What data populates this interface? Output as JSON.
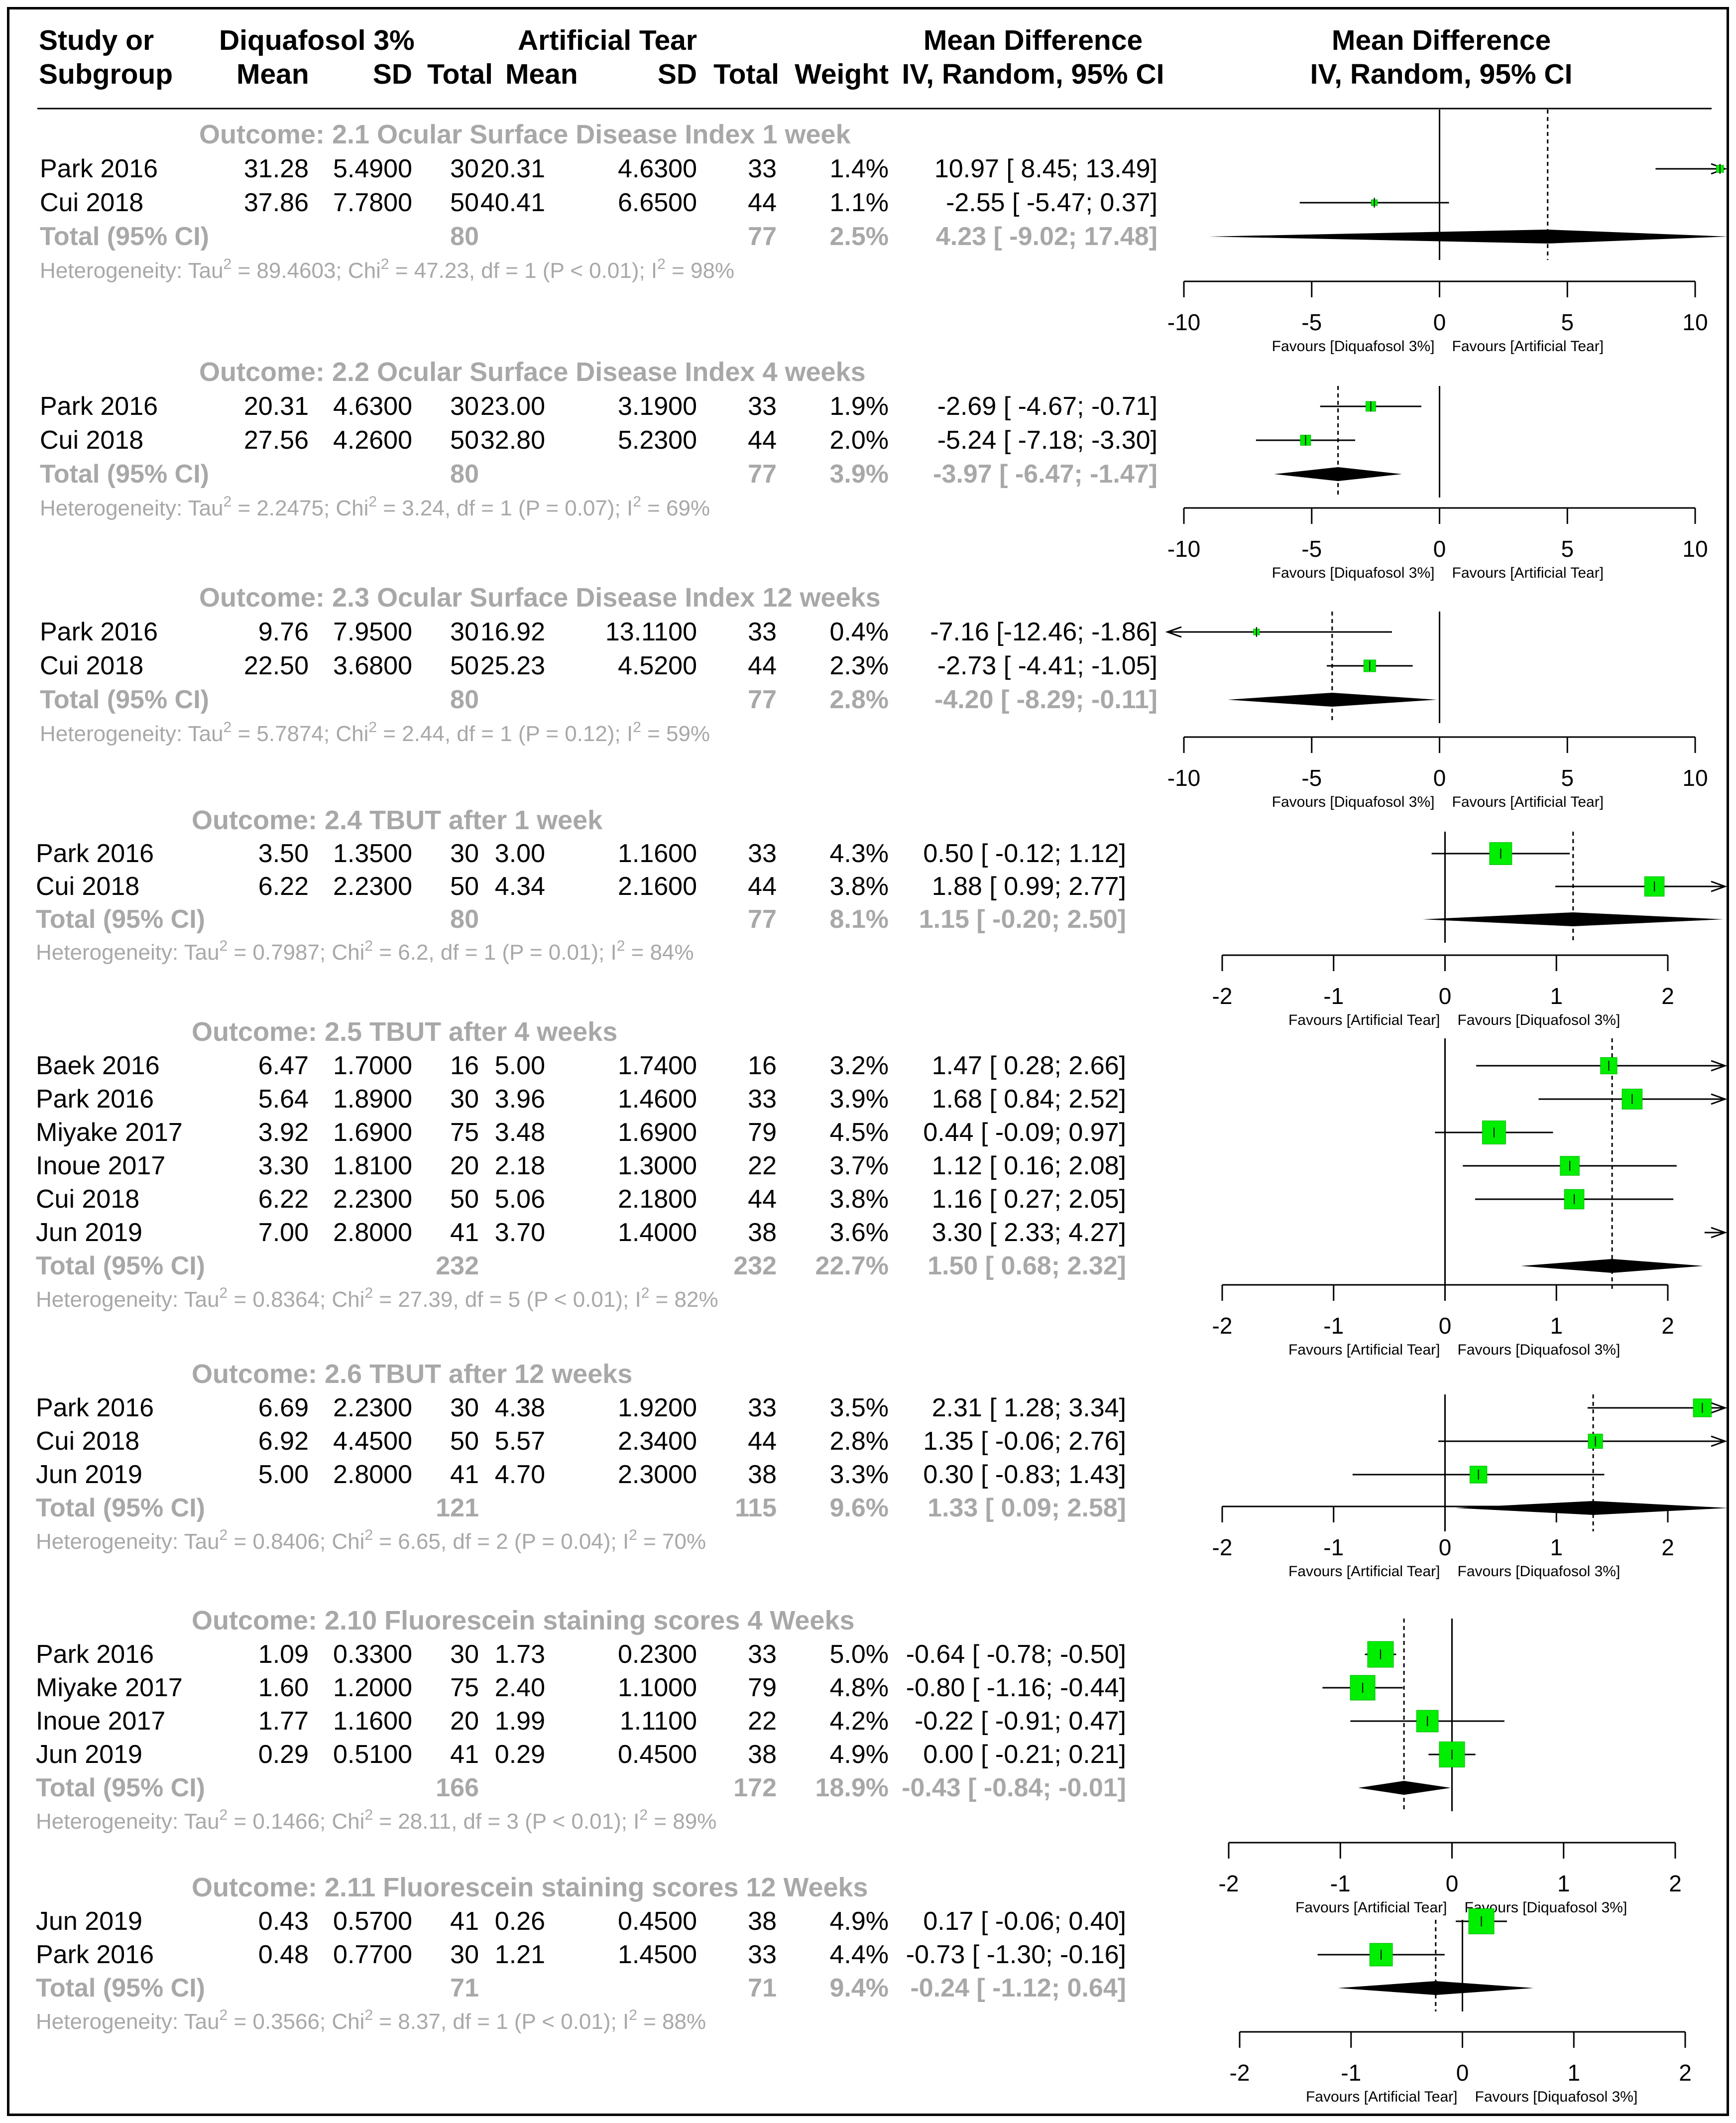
{
  "header": {
    "study_or": "Study or",
    "subgroup": "Subgroup",
    "group1": "Diquafosol 3%",
    "group2": "Artificial Tear",
    "mean": "Mean",
    "sd": "SD",
    "total": "Total",
    "weight": "Weight",
    "md_title": "Mean Difference",
    "md_sub": "IV, Random, 95% CI"
  },
  "chart_data": {
    "type": "forest",
    "outcomes": [
      {
        "title": "Outcome: 2.1 Ocular Surface Disease Index 1 week",
        "studies": [
          {
            "name": "Park 2016",
            "mean1": "31.28",
            "sd1": "5.4900",
            "n1": "30",
            "mean2": "20.31",
            "sd2": "4.6300",
            "n2": "33",
            "weight": "1.4%",
            "ci_text": "10.97 [ 8.45; 13.49]",
            "md": 10.97,
            "lo": 8.45,
            "hi": 13.49
          },
          {
            "name": "Cui 2018",
            "mean1": "37.86",
            "sd1": "7.7800",
            "n1": "50",
            "mean2": "40.41",
            "sd2": "6.6500",
            "n2": "44",
            "weight": "1.1%",
            "ci_text": "-2.55 [ -5.47; 0.37]",
            "md": -2.55,
            "lo": -5.47,
            "hi": 0.37
          }
        ],
        "total": {
          "label": "Total (95% CI)",
          "n1": "80",
          "n2": "77",
          "weight": "2.5%",
          "ci_text": "4.23 [ -9.02; 17.48]",
          "md": 4.23,
          "lo": -9.02,
          "hi": 17.48
        },
        "het": {
          "pre": "Heterogeneity: Tau",
          "tau2": "89.4603",
          "chi2": "47.23",
          "df": "1",
          "p": "P < 0.01",
          "i2": "98%"
        },
        "axis": {
          "ticks": [
            -10,
            -5,
            0,
            5,
            10
          ],
          "left_label": "Favours [Diquafosol 3%]",
          "right_label": "Favours [Artificial Tear]"
        }
      },
      {
        "title": "Outcome: 2.2 Ocular Surface Disease Index 4 weeks",
        "studies": [
          {
            "name": "Park 2016",
            "mean1": "20.31",
            "sd1": "4.6300",
            "n1": "30",
            "mean2": "23.00",
            "sd2": "3.1900",
            "n2": "33",
            "weight": "1.9%",
            "ci_text": "-2.69 [ -4.67; -0.71]",
            "md": -2.69,
            "lo": -4.67,
            "hi": -0.71
          },
          {
            "name": "Cui 2018",
            "mean1": "27.56",
            "sd1": "4.2600",
            "n1": "50",
            "mean2": "32.80",
            "sd2": "5.2300",
            "n2": "44",
            "weight": "2.0%",
            "ci_text": "-5.24 [ -7.18; -3.30]",
            "md": -5.24,
            "lo": -7.18,
            "hi": -3.3
          }
        ],
        "total": {
          "label": "Total (95% CI)",
          "n1": "80",
          "n2": "77",
          "weight": "3.9%",
          "ci_text": "-3.97 [ -6.47; -1.47]",
          "md": -3.97,
          "lo": -6.47,
          "hi": -1.47
        },
        "het": {
          "pre": "Heterogeneity: Tau",
          "tau2": "2.2475",
          "chi2": "3.24",
          "df": "1",
          "p": "P = 0.07",
          "i2": "69%"
        },
        "axis": {
          "ticks": [
            -10,
            -5,
            0,
            5,
            10
          ],
          "left_label": "Favours [Diquafosol 3%]",
          "right_label": "Favours [Artificial Tear]"
        }
      },
      {
        "title": "Outcome: 2.3 Ocular Surface Disease Index 12 weeks",
        "studies": [
          {
            "name": "Park 2016",
            "mean1": "9.76",
            "sd1": "7.9500",
            "n1": "30",
            "mean2": "16.92",
            "sd2": "13.1100",
            "n2": "33",
            "weight": "0.4%",
            "ci_text": "-7.16 [-12.46; -1.86]",
            "md": -7.16,
            "lo": -12.46,
            "hi": -1.86
          },
          {
            "name": "Cui 2018",
            "mean1": "22.50",
            "sd1": "3.6800",
            "n1": "50",
            "mean2": "25.23",
            "sd2": "4.5200",
            "n2": "44",
            "weight": "2.3%",
            "ci_text": "-2.73 [ -4.41; -1.05]",
            "md": -2.73,
            "lo": -4.41,
            "hi": -1.05
          }
        ],
        "total": {
          "label": "Total (95% CI)",
          "n1": "80",
          "n2": "77",
          "weight": "2.8%",
          "ci_text": "-4.20 [ -8.29; -0.11]",
          "md": -4.2,
          "lo": -8.29,
          "hi": -0.11
        },
        "het": {
          "pre": "Heterogeneity: Tau",
          "tau2": "5.7874",
          "chi2": "2.44",
          "df": "1",
          "p": "P = 0.12",
          "i2": "59%"
        },
        "axis": {
          "ticks": [
            -10,
            -5,
            0,
            5,
            10
          ],
          "left_label": "Favours [Diquafosol 3%]",
          "right_label": "Favours [Artificial Tear]"
        }
      },
      {
        "title": "Outcome: 2.4 TBUT after 1 week",
        "studies": [
          {
            "name": "Park 2016",
            "mean1": "3.50",
            "sd1": "1.3500",
            "n1": "30",
            "mean2": "3.00",
            "sd2": "1.1600",
            "n2": "33",
            "weight": "4.3%",
            "ci_text": "0.50 [ -0.12; 1.12]",
            "md": 0.5,
            "lo": -0.12,
            "hi": 1.12
          },
          {
            "name": "Cui 2018",
            "mean1": "6.22",
            "sd1": "2.2300",
            "n1": "50",
            "mean2": "4.34",
            "sd2": "2.1600",
            "n2": "44",
            "weight": "3.8%",
            "ci_text": "1.88 [ 0.99; 2.77]",
            "md": 1.88,
            "lo": 0.99,
            "hi": 2.77
          }
        ],
        "total": {
          "label": "Total (95% CI)",
          "n1": "80",
          "n2": "77",
          "weight": "8.1%",
          "ci_text": "1.15 [ -0.20; 2.50]",
          "md": 1.15,
          "lo": -0.2,
          "hi": 2.5
        },
        "het": {
          "pre": "Heterogeneity: Tau",
          "tau2": "0.7987",
          "chi2": "6.2",
          "df": "1",
          "p": "P = 0.01",
          "i2": "84%"
        },
        "axis": {
          "ticks": [
            -2,
            -1,
            0,
            1,
            2
          ],
          "left_label": "Favours [Artificial Tear]",
          "right_label": "Favours [Diquafosol 3%]"
        }
      },
      {
        "title": "Outcome: 2.5 TBUT after 4 weeks",
        "studies": [
          {
            "name": "Baek 2016",
            "mean1": "6.47",
            "sd1": "1.7000",
            "n1": "16",
            "mean2": "5.00",
            "sd2": "1.7400",
            "n2": "16",
            "weight": "3.2%",
            "ci_text": "1.47 [ 0.28; 2.66]",
            "md": 1.47,
            "lo": 0.28,
            "hi": 2.66
          },
          {
            "name": "Park 2016",
            "mean1": "5.64",
            "sd1": "1.8900",
            "n1": "30",
            "mean2": "3.96",
            "sd2": "1.4600",
            "n2": "33",
            "weight": "3.9%",
            "ci_text": "1.68 [ 0.84; 2.52]",
            "md": 1.68,
            "lo": 0.84,
            "hi": 2.52
          },
          {
            "name": "Miyake 2017",
            "mean1": "3.92",
            "sd1": "1.6900",
            "n1": "75",
            "mean2": "3.48",
            "sd2": "1.6900",
            "n2": "79",
            "weight": "4.5%",
            "ci_text": "0.44 [ -0.09; 0.97]",
            "md": 0.44,
            "lo": -0.09,
            "hi": 0.97
          },
          {
            "name": "Inoue 2017",
            "mean1": "3.30",
            "sd1": "1.8100",
            "n1": "20",
            "mean2": "2.18",
            "sd2": "1.3000",
            "n2": "22",
            "weight": "3.7%",
            "ci_text": "1.12 [ 0.16; 2.08]",
            "md": 1.12,
            "lo": 0.16,
            "hi": 2.08
          },
          {
            "name": "Cui 2018",
            "mean1": "6.22",
            "sd1": "2.2300",
            "n1": "50",
            "mean2": "5.06",
            "sd2": "2.1800",
            "n2": "44",
            "weight": "3.8%",
            "ci_text": "1.16 [ 0.27; 2.05]",
            "md": 1.16,
            "lo": 0.27,
            "hi": 2.05
          },
          {
            "name": "Jun 2019",
            "mean1": "7.00",
            "sd1": "2.8000",
            "n1": "41",
            "mean2": "3.70",
            "sd2": "1.4000",
            "n2": "38",
            "weight": "3.6%",
            "ci_text": "3.30 [ 2.33; 4.27]",
            "md": 3.3,
            "lo": 2.33,
            "hi": 4.27
          }
        ],
        "total": {
          "label": "Total (95% CI)",
          "n1": "232",
          "n2": "232",
          "weight": "22.7%",
          "ci_text": "1.50 [ 0.68; 2.32]",
          "md": 1.5,
          "lo": 0.68,
          "hi": 2.32
        },
        "het": {
          "pre": "Heterogeneity: Tau",
          "tau2": "0.8364",
          "chi2": "27.39",
          "df": "5",
          "p": "P < 0.01",
          "i2": "82%"
        },
        "axis": {
          "ticks": [
            -2,
            -1,
            0,
            1,
            2
          ],
          "left_label": "Favours [Artificial Tear]",
          "right_label": "Favours [Diquafosol 3%]"
        }
      },
      {
        "title": "Outcome: 2.6 TBUT after 12 weeks",
        "studies": [
          {
            "name": "Park 2016",
            "mean1": "6.69",
            "sd1": "2.2300",
            "n1": "30",
            "mean2": "4.38",
            "sd2": "1.9200",
            "n2": "33",
            "weight": "3.5%",
            "ci_text": "2.31 [ 1.28; 3.34]",
            "md": 2.31,
            "lo": 1.28,
            "hi": 3.34
          },
          {
            "name": "Cui 2018",
            "mean1": "6.92",
            "sd1": "4.4500",
            "n1": "50",
            "mean2": "5.57",
            "sd2": "2.3400",
            "n2": "44",
            "weight": "2.8%",
            "ci_text": "1.35 [ -0.06; 2.76]",
            "md": 1.35,
            "lo": -0.06,
            "hi": 2.76
          },
          {
            "name": "Jun 2019",
            "mean1": "5.00",
            "sd1": "2.8000",
            "n1": "41",
            "mean2": "4.70",
            "sd2": "2.3000",
            "n2": "38",
            "weight": "3.3%",
            "ci_text": "0.30 [ -0.83; 1.43]",
            "md": 0.3,
            "lo": -0.83,
            "hi": 1.43
          }
        ],
        "total": {
          "label": "Total (95% CI)",
          "n1": "121",
          "n2": "115",
          "weight": "9.6%",
          "ci_text": "1.33 [ 0.09; 2.58]",
          "md": 1.33,
          "lo": 0.09,
          "hi": 2.58
        },
        "het": {
          "pre": "Heterogeneity: Tau",
          "tau2": "0.8406",
          "chi2": "6.65",
          "df": "2",
          "p": "P = 0.04",
          "i2": "70%"
        },
        "axis": {
          "ticks": [
            -2,
            -1,
            0,
            1,
            2
          ],
          "left_label": "Favours [Artificial Tear]",
          "right_label": "Favours [Diquafosol 3%]"
        }
      },
      {
        "title": "Outcome: 2.10 Fluorescein staining scores 4 Weeks",
        "studies": [
          {
            "name": "Park 2016",
            "mean1": "1.09",
            "sd1": "0.3300",
            "n1": "30",
            "mean2": "1.73",
            "sd2": "0.2300",
            "n2": "33",
            "weight": "5.0%",
            "ci_text": "-0.64 [ -0.78; -0.50]",
            "md": -0.64,
            "lo": -0.78,
            "hi": -0.5
          },
          {
            "name": "Miyake 2017",
            "mean1": "1.60",
            "sd1": "1.2000",
            "n1": "75",
            "mean2": "2.40",
            "sd2": "1.1000",
            "n2": "79",
            "weight": "4.8%",
            "ci_text": "-0.80 [ -1.16; -0.44]",
            "md": -0.8,
            "lo": -1.16,
            "hi": -0.44
          },
          {
            "name": "Inoue 2017",
            "mean1": "1.77",
            "sd1": "1.1600",
            "n1": "20",
            "mean2": "1.99",
            "sd2": "1.1100",
            "n2": "22",
            "weight": "4.2%",
            "ci_text": "-0.22 [ -0.91; 0.47]",
            "md": -0.22,
            "lo": -0.91,
            "hi": 0.47
          },
          {
            "name": "Jun 2019",
            "mean1": "0.29",
            "sd1": "0.5100",
            "n1": "41",
            "mean2": "0.29",
            "sd2": "0.4500",
            "n2": "38",
            "weight": "4.9%",
            "ci_text": "0.00 [ -0.21; 0.21]",
            "md": 0.0,
            "lo": -0.21,
            "hi": 0.21
          }
        ],
        "total": {
          "label": "Total (95% CI)",
          "n1": "166",
          "n2": "172",
          "weight": "18.9%",
          "ci_text": "-0.43 [ -0.84; -0.01]",
          "md": -0.43,
          "lo": -0.84,
          "hi": -0.01
        },
        "het": {
          "pre": "Heterogeneity: Tau",
          "tau2": "0.1466",
          "chi2": "28.11",
          "df": "3",
          "p": "P < 0.01",
          "i2": "89%"
        },
        "axis": {
          "ticks": [
            -2,
            -1,
            0,
            1,
            2
          ],
          "left_label": "Favours [Artificial Tear]",
          "right_label": "Favours [Diquafosol 3%]"
        }
      },
      {
        "title": "Outcome: 2.11 Fluorescein staining scores 12 Weeks",
        "studies": [
          {
            "name": "Jun 2019",
            "mean1": "0.43",
            "sd1": "0.5700",
            "n1": "41",
            "mean2": "0.26",
            "sd2": "0.4500",
            "n2": "38",
            "weight": "4.9%",
            "ci_text": "0.17 [ -0.06; 0.40]",
            "md": 0.17,
            "lo": -0.06,
            "hi": 0.4
          },
          {
            "name": "Park 2016",
            "mean1": "0.48",
            "sd1": "0.7700",
            "n1": "30",
            "mean2": "1.21",
            "sd2": "1.4500",
            "n2": "33",
            "weight": "4.4%",
            "ci_text": "-0.73 [ -1.30; -0.16]",
            "md": -0.73,
            "lo": -1.3,
            "hi": -0.16
          }
        ],
        "total": {
          "label": "Total (95% CI)",
          "n1": "71",
          "n2": "71",
          "weight": "9.4%",
          "ci_text": "-0.24 [ -1.12; 0.64]",
          "md": -0.24,
          "lo": -1.12,
          "hi": 0.64
        },
        "het": {
          "pre": "Heterogeneity: Tau",
          "tau2": "0.3566",
          "chi2": "8.37",
          "df": "1",
          "p": "P < 0.01",
          "i2": "88%"
        },
        "axis": {
          "ticks": [
            -2,
            -1,
            0,
            1,
            2
          ],
          "left_label": "Favours [Artificial Tear]",
          "right_label": "Favours [Diquafosol 3%]"
        }
      }
    ]
  },
  "colors": {
    "box": "#00ee00",
    "grey": "#a8a8a8",
    "line": "#000000"
  }
}
